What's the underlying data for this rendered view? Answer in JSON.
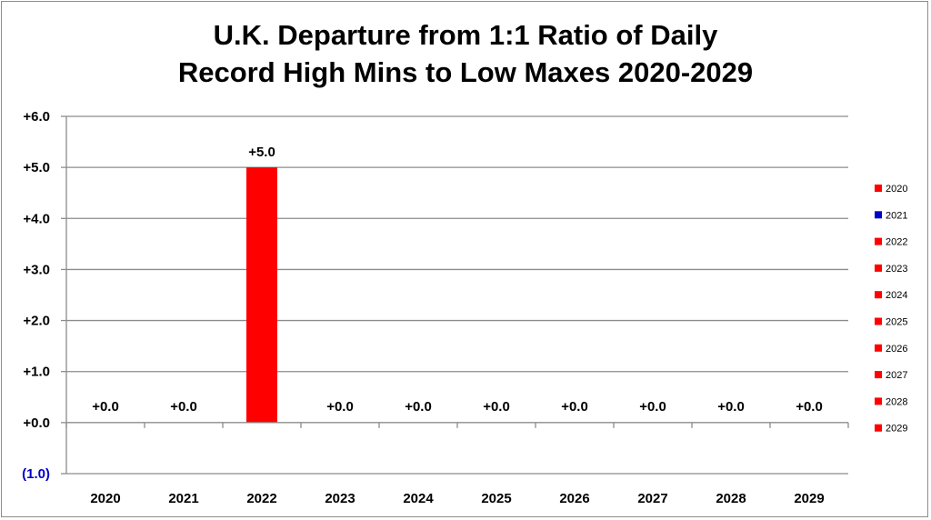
{
  "chart_data": {
    "type": "bar",
    "title_line1": "U.K. Departure from 1:1 Ratio of Daily",
    "title_line2": "Record High Mins to Low Maxes 2020-2029",
    "categories": [
      "2020",
      "2021",
      "2022",
      "2023",
      "2024",
      "2025",
      "2026",
      "2027",
      "2028",
      "2029"
    ],
    "values": [
      0,
      0,
      5,
      0,
      0,
      0,
      0,
      0,
      0,
      0
    ],
    "data_labels": [
      "+0.0",
      "+0.0",
      "+5.0",
      "+0.0",
      "+0.0",
      "+0.0",
      "+0.0",
      "+0.0",
      "+0.0",
      "+0.0"
    ],
    "bar_colors": [
      "#ff0000",
      "#0000cc",
      "#ff0000",
      "#ff0000",
      "#ff0000",
      "#ff0000",
      "#ff0000",
      "#ff0000",
      "#ff0000",
      "#ff0000"
    ],
    "ylim": [
      -1,
      6
    ],
    "y_ticks": [
      {
        "value": 6,
        "label": "+6.0",
        "color": "#000000"
      },
      {
        "value": 5,
        "label": "+5.0",
        "color": "#000000"
      },
      {
        "value": 4,
        "label": "+4.0",
        "color": "#000000"
      },
      {
        "value": 3,
        "label": "+3.0",
        "color": "#000000"
      },
      {
        "value": 2,
        "label": "+2.0",
        "color": "#000000"
      },
      {
        "value": 1,
        "label": "+1.0",
        "color": "#000000"
      },
      {
        "value": 0,
        "label": "+0.0",
        "color": "#000000"
      },
      {
        "value": -1,
        "label": "(1.0)",
        "color": "#0000cc"
      }
    ],
    "grid": true,
    "legend": {
      "placement": "right",
      "entries": [
        {
          "label": "2020",
          "color": "#ff0000"
        },
        {
          "label": "2021",
          "color": "#0000cc"
        },
        {
          "label": "2022",
          "color": "#ff0000"
        },
        {
          "label": "2023",
          "color": "#ff0000"
        },
        {
          "label": "2024",
          "color": "#ff0000"
        },
        {
          "label": "2025",
          "color": "#ff0000"
        },
        {
          "label": "2026",
          "color": "#ff0000"
        },
        {
          "label": "2027",
          "color": "#ff0000"
        },
        {
          "label": "2028",
          "color": "#ff0000"
        },
        {
          "label": "2029",
          "color": "#ff0000"
        }
      ]
    },
    "colors": {
      "gridline": "#8c8c8c",
      "axis": "#8c8c8c",
      "text": "#000000"
    }
  }
}
